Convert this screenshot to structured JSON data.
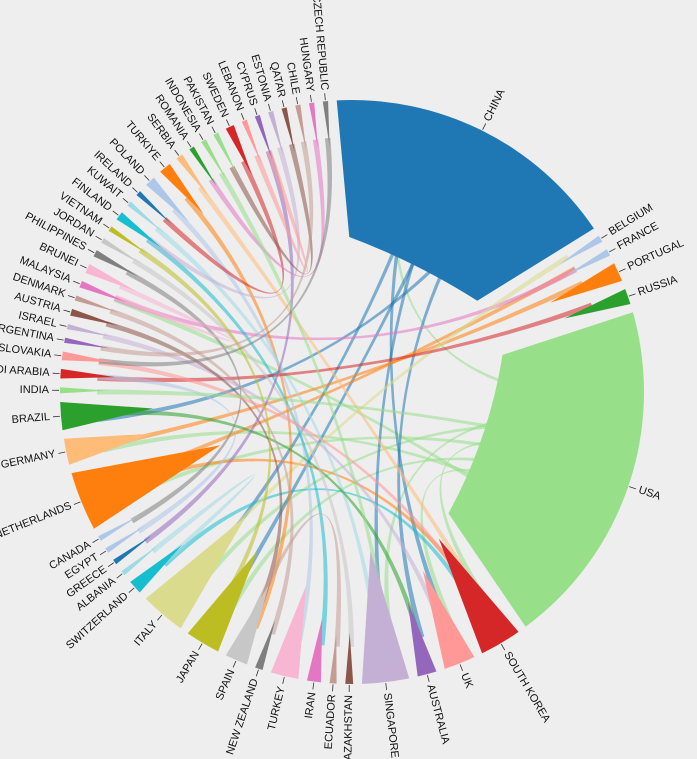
{
  "chart_data": {
    "type": "chord",
    "title": "",
    "hub_nodes": [
      "CHINA",
      "USA"
    ],
    "nodes": [
      {
        "name": "CHINA",
        "value": 34,
        "color": "#1f77b4"
      },
      {
        "name": "BELGIUM",
        "value": 0.8,
        "color": "#aec7e8"
      },
      {
        "name": "FRANCE",
        "value": 0.8,
        "color": "#aec7e8"
      },
      {
        "name": "PORTUGAL",
        "value": 2.2,
        "color": "#ff7f0e"
      },
      {
        "name": "RUSSIA",
        "value": 1.8,
        "color": "#2ca02c"
      },
      {
        "name": "USA",
        "value": 40,
        "color": "#98df8a"
      },
      {
        "name": "SOUTH KOREA",
        "value": 4.8,
        "color": "#d62728"
      },
      {
        "name": "UK",
        "value": 3.6,
        "color": "#ff9896"
      },
      {
        "name": "AUSTRALIA",
        "value": 2.2,
        "color": "#9467bd"
      },
      {
        "name": "SINGAPORE",
        "value": 5.4,
        "color": "#c5b0d5"
      },
      {
        "name": "KAZAKHSTAN",
        "value": 0.9,
        "color": "#8c564b"
      },
      {
        "name": "ECUADOR",
        "value": 0.8,
        "color": "#c49c94"
      },
      {
        "name": "IRAN",
        "value": 1.6,
        "color": "#e377c2"
      },
      {
        "name": "TURKEY",
        "value": 3.2,
        "color": "#f7b6d2"
      },
      {
        "name": "NEW ZEALAND",
        "value": 0.9,
        "color": "#7f7f7f"
      },
      {
        "name": "SPAIN",
        "value": 2.6,
        "color": "#c7c7c7"
      },
      {
        "name": "JAPAN",
        "value": 4.0,
        "color": "#bcbd22"
      },
      {
        "name": "ITALY",
        "value": 5.2,
        "color": "#dbdb8d"
      },
      {
        "name": "SWITZERLAND",
        "value": 1.6,
        "color": "#17becf"
      },
      {
        "name": "ALBANIA",
        "value": 0.6,
        "color": "#9edae5"
      },
      {
        "name": "GREECE",
        "value": 0.6,
        "color": "#1f77b4"
      },
      {
        "name": "EGYPT",
        "value": 0.6,
        "color": "#aec7e8"
      },
      {
        "name": "CANADA",
        "value": 0.6,
        "color": "#aec7e8"
      },
      {
        "name": "NETHERLANDS",
        "value": 6.8,
        "color": "#ff7f0e"
      },
      {
        "name": "GERMANY",
        "value": 3.0,
        "color": "#ffbb78"
      },
      {
        "name": "BRAZIL",
        "value": 3.2,
        "color": "#2ca02c"
      },
      {
        "name": "INDIA",
        "value": 0.7,
        "color": "#98df8a"
      },
      {
        "name": "SAUDI ARABIA",
        "value": 1.1,
        "color": "#d62728"
      },
      {
        "name": "SLOVAKIA",
        "value": 1.0,
        "color": "#ff9896"
      },
      {
        "name": "ARGENTINA",
        "value": 0.6,
        "color": "#9467bd"
      },
      {
        "name": "ISRAEL",
        "value": 0.6,
        "color": "#c5b0d5"
      },
      {
        "name": "AUSTRIA",
        "value": 0.8,
        "color": "#8c564b"
      },
      {
        "name": "DENMARK",
        "value": 0.6,
        "color": "#c49c94"
      },
      {
        "name": "MALAYSIA",
        "value": 0.8,
        "color": "#e377c2"
      },
      {
        "name": "BRUNEI",
        "value": 1.1,
        "color": "#f7b6d2"
      },
      {
        "name": "PHILIPPINES",
        "value": 0.8,
        "color": "#7f7f7f"
      },
      {
        "name": "JORDAN",
        "value": 0.6,
        "color": "#c7c7c7"
      },
      {
        "name": "VIETNAM",
        "value": 0.6,
        "color": "#bcbd22"
      },
      {
        "name": "FINLAND",
        "value": 1.0,
        "color": "#17becf"
      },
      {
        "name": "KUWAIT",
        "value": 0.6,
        "color": "#9edae5"
      },
      {
        "name": "IRELAND",
        "value": 0.6,
        "color": "#1f77b4"
      },
      {
        "name": "POLAND",
        "value": 1.2,
        "color": "#aec7e8"
      },
      {
        "name": "TURKIYE",
        "value": 1.4,
        "color": "#ff7f0e"
      },
      {
        "name": "SERBIA",
        "value": 0.8,
        "color": "#ffbb78"
      },
      {
        "name": "ROMANIA",
        "value": 0.6,
        "color": "#2ca02c"
      },
      {
        "name": "INDONESIA",
        "value": 0.6,
        "color": "#98df8a"
      },
      {
        "name": "PAKISTAN",
        "value": 0.6,
        "color": "#98df8a"
      },
      {
        "name": "SWEDEN",
        "value": 1.0,
        "color": "#d62728"
      },
      {
        "name": "LEBANON",
        "value": 0.6,
        "color": "#ff9896"
      },
      {
        "name": "CYPRUS",
        "value": 0.6,
        "color": "#9467bd"
      },
      {
        "name": "ESTONIA",
        "value": 0.6,
        "color": "#c5b0d5"
      },
      {
        "name": "QATAR",
        "value": 0.6,
        "color": "#8c564b"
      },
      {
        "name": "CHILE",
        "value": 0.6,
        "color": "#c49c94"
      },
      {
        "name": "HUNGARY",
        "value": 0.6,
        "color": "#e377c2"
      },
      {
        "name": "CZECH REPUBLIC",
        "value": 0.6,
        "color": "#7f7f7f"
      }
    ],
    "links": [
      {
        "source": "USA",
        "target": "CHINA",
        "value": 3
      },
      {
        "source": "USA",
        "target": "SOUTH KOREA",
        "value": 1
      },
      {
        "source": "USA",
        "target": "UK",
        "value": 1
      },
      {
        "source": "USA",
        "target": "SINGAPORE",
        "value": 1
      },
      {
        "source": "USA",
        "target": "NETHERLANDS",
        "value": 1
      },
      {
        "source": "USA",
        "target": "GERMANY",
        "value": 1
      },
      {
        "source": "USA",
        "target": "ITALY",
        "value": 1
      },
      {
        "source": "USA",
        "target": "JAPAN",
        "value": 1
      },
      {
        "source": "USA",
        "target": "MALAYSIA",
        "value": 1
      },
      {
        "source": "CHINA",
        "target": "SINGAPORE",
        "value": 1
      },
      {
        "source": "CHINA",
        "target": "AUSTRALIA",
        "value": 1
      },
      {
        "source": "CHINA",
        "target": "UK",
        "value": 1
      },
      {
        "source": "CHINA",
        "target": "JAPAN",
        "value": 1
      },
      {
        "source": "CHINA",
        "target": "BRAZIL",
        "value": 1
      },
      {
        "source": "CHINA",
        "target": "ITALY",
        "value": 1
      },
      {
        "source": "NETHERLANDS",
        "target": "SOUTH KOREA",
        "value": 1
      },
      {
        "source": "NETHERLANDS",
        "target": "FRANCE",
        "value": 1
      },
      {
        "source": "PORTUGAL",
        "target": "GERMANY",
        "value": 1
      },
      {
        "source": "MALAYSIA",
        "target": "FRANCE",
        "value": 1
      },
      {
        "source": "SWITZERLAND",
        "target": "SOUTH KOREA",
        "value": 1
      },
      {
        "source": "ITALY",
        "target": "BELGIUM",
        "value": 1
      },
      {
        "source": "TURKIYE",
        "target": "SPAIN",
        "value": 1
      },
      {
        "source": "POLAND",
        "target": "TURKEY",
        "value": 1
      },
      {
        "source": "SERBIA",
        "target": "SOUTH KOREA",
        "value": 1
      },
      {
        "source": "FINLAND",
        "target": "IRAN",
        "value": 1
      },
      {
        "source": "KUWAIT",
        "target": "SINGAPORE",
        "value": 1
      },
      {
        "source": "SAUDI ARABIA",
        "target": "RUSSIA",
        "value": 1
      },
      {
        "source": "BRAZIL",
        "target": "AUSTRALIA",
        "value": 1
      },
      {
        "source": "ISRAEL",
        "target": "UK",
        "value": 1
      },
      {
        "source": "AUSTRIA",
        "target": "SPAIN",
        "value": 1
      },
      {
        "source": "PHILIPPINES",
        "target": "CANADA",
        "value": 1
      },
      {
        "source": "JORDAN",
        "target": "KAZAKHSTAN",
        "value": 1
      },
      {
        "source": "SWEDEN",
        "target": "IRELAND",
        "value": 1
      },
      {
        "source": "CYPRUS",
        "target": "GREECE",
        "value": 1
      },
      {
        "source": "SLOVAKIA",
        "target": "SOUTH KOREA",
        "value": 1
      },
      {
        "source": "DENMARK",
        "target": "NEW ZEALAND",
        "value": 1
      },
      {
        "source": "EGYPT",
        "target": "SAUDI ARABIA",
        "value": 1
      },
      {
        "source": "ALBANIA",
        "target": "SWITZERLAND",
        "value": 1
      },
      {
        "source": "INDIA",
        "target": "USA",
        "value": 1
      },
      {
        "source": "ECUADOR",
        "target": "SPAIN",
        "value": 1
      },
      {
        "source": "VIETNAM",
        "target": "JAPAN",
        "value": 1
      },
      {
        "source": "BRUNEI",
        "target": "MALAYSIA",
        "value": 1
      },
      {
        "source": "ESTONIA",
        "target": "FINLAND",
        "value": 1
      },
      {
        "source": "QATAR",
        "target": "PAKISTAN",
        "value": 1
      },
      {
        "source": "CHILE",
        "target": "ARGENTINA",
        "value": 1
      },
      {
        "source": "HUNGARY",
        "target": "ROMANIA",
        "value": 1
      },
      {
        "source": "CZECH REPUBLIC",
        "target": "SLOVAKIA",
        "value": 1
      },
      {
        "source": "LEBANON",
        "target": "CYPRUS",
        "value": 1
      },
      {
        "source": "INDONESIA",
        "target": "SINGAPORE",
        "value": 1
      }
    ]
  }
}
